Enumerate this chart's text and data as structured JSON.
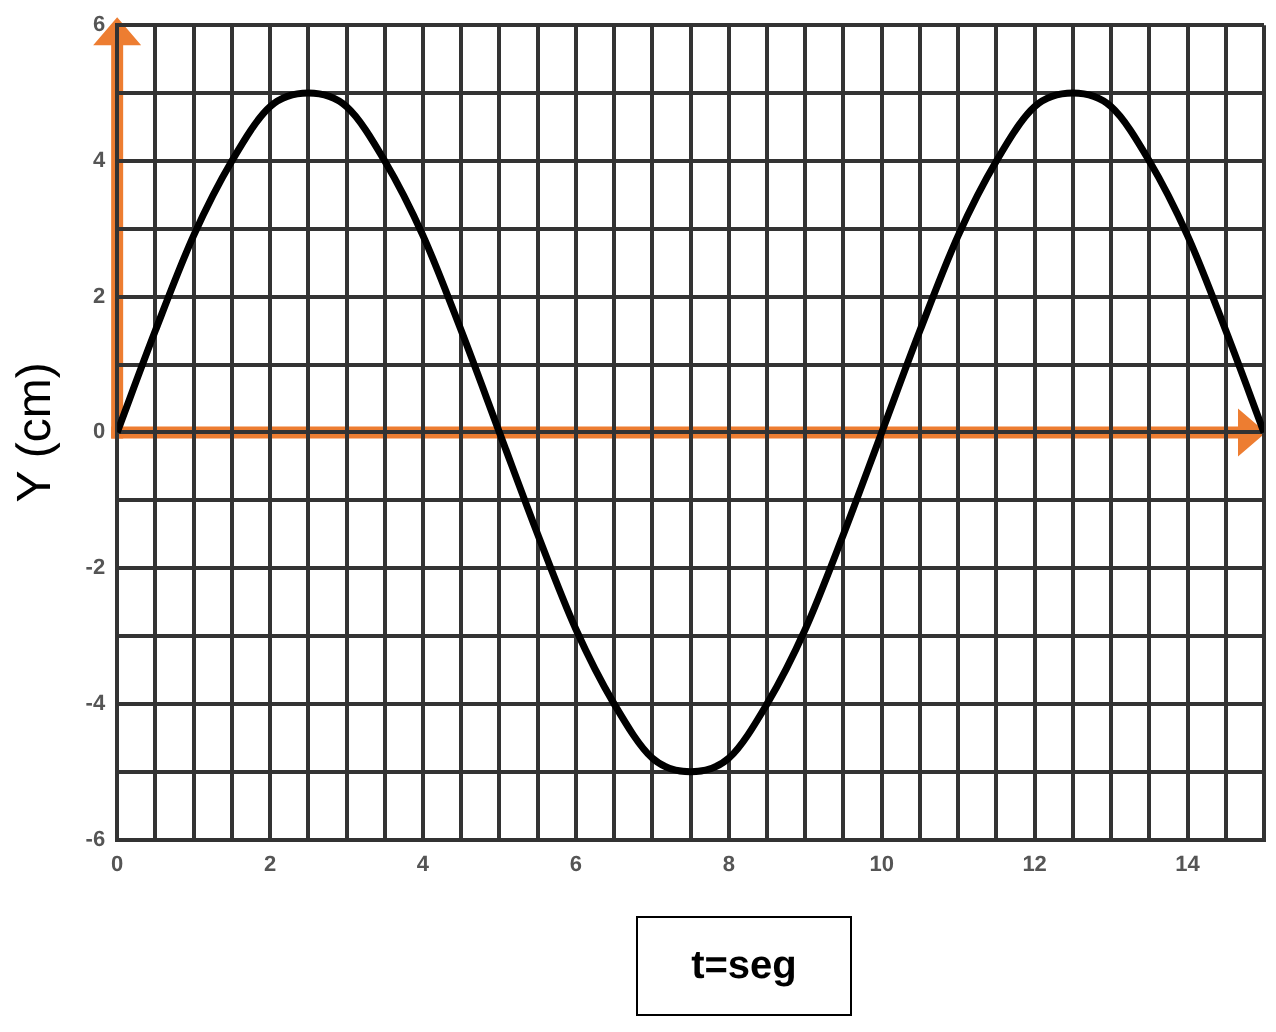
{
  "chart_data": {
    "type": "line",
    "xlabel": "t=seg",
    "ylabel": "Y (cm)",
    "x": [
      0,
      0.5,
      1,
      1.5,
      2,
      2.5,
      3,
      3.5,
      4,
      4.5,
      5,
      5.5,
      6,
      6.5,
      7,
      7.5,
      8,
      8.5,
      9,
      9.5,
      10,
      10.5,
      11,
      11.5,
      12,
      12.5,
      13,
      13.5,
      14,
      14.5,
      15
    ],
    "series": [
      {
        "color": "#000000",
        "values": [
          0,
          1.5,
          2.9,
          4.0,
          4.8,
          5,
          4.8,
          4.0,
          2.9,
          1.5,
          0,
          -1.5,
          -2.9,
          -4.0,
          -4.8,
          -5,
          -4.8,
          -4.0,
          -2.9,
          -1.5,
          0,
          1.5,
          2.9,
          4.0,
          4.8,
          5,
          4.8,
          4.0,
          2.9,
          1.5,
          0
        ]
      }
    ],
    "xlim": [
      0,
      15
    ],
    "xticks": [
      0,
      {
        "value": 0.5,
        "label": null
      },
      {
        "value": 1,
        "label": null
      },
      {
        "value": 1.5,
        "label": null
      },
      2,
      {
        "value": 2.5,
        "label": null
      },
      {
        "value": 3,
        "label": null
      },
      {
        "value": 3.5,
        "label": null
      },
      4,
      {
        "value": 4.5,
        "label": null
      },
      {
        "value": 5,
        "label": null
      },
      {
        "value": 5.5,
        "label": null
      },
      6,
      {
        "value": 6.5,
        "label": null
      },
      {
        "value": 7,
        "label": null
      },
      {
        "value": 7.5,
        "label": null
      },
      8,
      {
        "value": 8.5,
        "label": null
      },
      {
        "value": 9,
        "label": null
      },
      {
        "value": 9.5,
        "label": null
      },
      10,
      {
        "value": 10.5,
        "label": null
      },
      {
        "value": 11,
        "label": null
      },
      {
        "value": 11.5,
        "label": null
      },
      12,
      {
        "value": 12.5,
        "label": null
      },
      {
        "value": 13,
        "label": null
      },
      {
        "value": 13.5,
        "label": null
      },
      14,
      {
        "value": 14.5,
        "label": null
      },
      {
        "value": 15,
        "label": null
      }
    ],
    "ylim": [
      -6,
      6
    ],
    "yticks": [
      -6,
      {
        "value": -5,
        "label": null
      },
      -4,
      {
        "value": -3,
        "label": null
      },
      -2,
      {
        "value": -1,
        "label": null
      },
      0,
      {
        "value": 1,
        "label": null
      },
      2,
      {
        "value": 3,
        "label": null
      },
      4,
      {
        "value": 5,
        "label": null
      },
      6
    ],
    "grid": true,
    "legend": false,
    "marker": "none",
    "line_style": "solid"
  }
}
